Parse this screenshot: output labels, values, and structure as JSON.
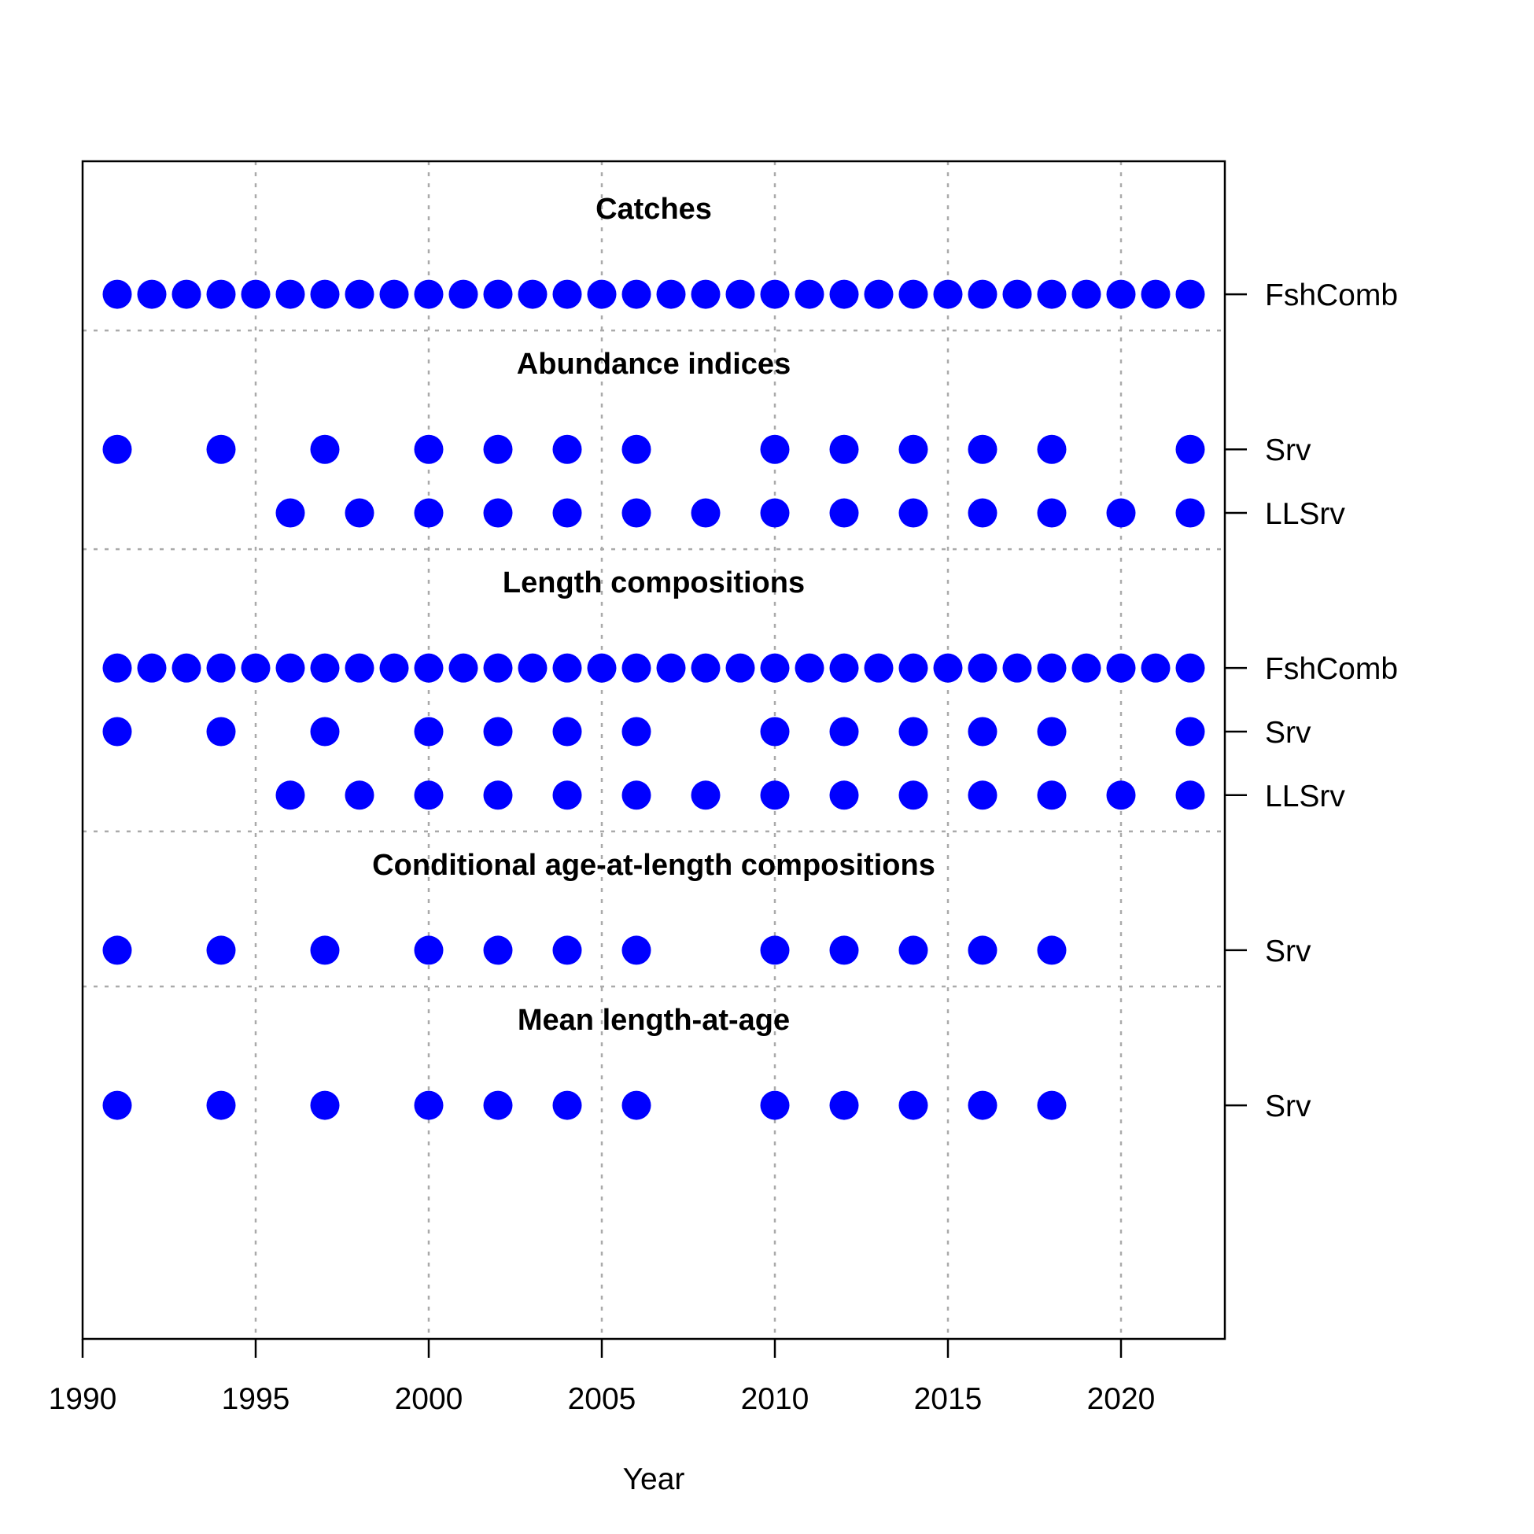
{
  "chart_data": {
    "type": "scatter",
    "xlabel": "Year",
    "xlim": [
      1990,
      2023
    ],
    "xticks": [
      "1990",
      "1995",
      "2000",
      "2005",
      "2010",
      "2015",
      "2020"
    ],
    "grid": true,
    "point_color": "#0000ff",
    "grid_color": "#aaaaaa",
    "sections": [
      {
        "title": "Catches",
        "rows": [
          {
            "label": "FshComb",
            "years": [
              1991,
              1992,
              1993,
              1994,
              1995,
              1996,
              1997,
              1998,
              1999,
              2000,
              2001,
              2002,
              2003,
              2004,
              2005,
              2006,
              2007,
              2008,
              2009,
              2010,
              2011,
              2012,
              2013,
              2014,
              2015,
              2016,
              2017,
              2018,
              2019,
              2020,
              2021,
              2022
            ]
          }
        ]
      },
      {
        "title": "Abundance indices",
        "rows": [
          {
            "label": "Srv",
            "years": [
              1991,
              1994,
              1997,
              2000,
              2002,
              2004,
              2006,
              2010,
              2012,
              2014,
              2016,
              2018,
              2022
            ]
          },
          {
            "label": "LLSrv",
            "years": [
              1996,
              1998,
              2000,
              2002,
              2004,
              2006,
              2008,
              2010,
              2012,
              2014,
              2016,
              2018,
              2020,
              2022
            ]
          }
        ]
      },
      {
        "title": "Length compositions",
        "rows": [
          {
            "label": "FshComb",
            "years": [
              1991,
              1992,
              1993,
              1994,
              1995,
              1996,
              1997,
              1998,
              1999,
              2000,
              2001,
              2002,
              2003,
              2004,
              2005,
              2006,
              2007,
              2008,
              2009,
              2010,
              2011,
              2012,
              2013,
              2014,
              2015,
              2016,
              2017,
              2018,
              2019,
              2020,
              2021,
              2022
            ]
          },
          {
            "label": "Srv",
            "years": [
              1991,
              1994,
              1997,
              2000,
              2002,
              2004,
              2006,
              2010,
              2012,
              2014,
              2016,
              2018,
              2022
            ]
          },
          {
            "label": "LLSrv",
            "years": [
              1996,
              1998,
              2000,
              2002,
              2004,
              2006,
              2008,
              2010,
              2012,
              2014,
              2016,
              2018,
              2020,
              2022
            ]
          }
        ]
      },
      {
        "title": "Conditional age-at-length compositions",
        "rows": [
          {
            "label": "Srv",
            "years": [
              1991,
              1994,
              1997,
              2000,
              2002,
              2004,
              2006,
              2010,
              2012,
              2014,
              2016,
              2018
            ]
          }
        ]
      },
      {
        "title": "Mean length-at-age",
        "rows": [
          {
            "label": "Srv",
            "years": [
              1991,
              1994,
              1997,
              2000,
              2002,
              2004,
              2006,
              2010,
              2012,
              2014,
              2016,
              2018
            ]
          }
        ]
      }
    ]
  }
}
